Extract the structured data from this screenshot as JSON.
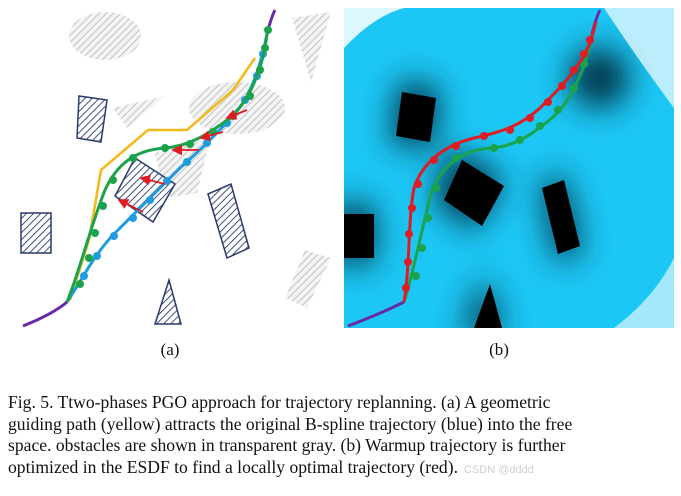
{
  "figure": {
    "panel_a_label": "(a)",
    "panel_b_label": "(b)",
    "caption_lines": [
      "Fig. 5.     Ttwo-phases PGO approach for trajectory replanning. (a) A geometric",
      "guiding path (yellow) attracts the original B-spline trajectory (blue) into the free",
      "space. obstacles are shown in transparent gray. (b) Warmup trajectory is further",
      "optimized in the ESDF to find a locally optimal trajectory (red)."
    ],
    "watermark": "CSDN @dddd"
  },
  "colors": {
    "guide_yellow": "#f3b91d",
    "bspline_blue": "#1f9be0",
    "warmup_green": "#1aa34a",
    "optimal_red": "#e01b24",
    "end_purple": "#6a2aa8",
    "obstacle_navy": "#2a3a6b",
    "esdf_cyan": "#1cc7f5"
  }
}
